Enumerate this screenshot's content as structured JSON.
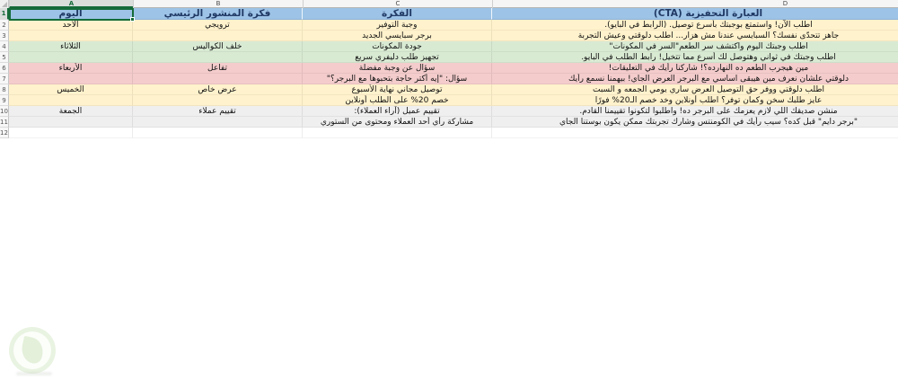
{
  "colors": {
    "header_fill": "#9dc3e6",
    "header_text": "#1f3864",
    "band_yellow": "#fff2cc",
    "band_green": "#d9ead3",
    "band_pink": "#f4cccc",
    "band_gray": "#efefef",
    "selection_green": "#156b39"
  },
  "sheet": {
    "column_letters": [
      "A",
      "B",
      "C",
      "D"
    ],
    "row_numbers": [
      "1",
      "2",
      "3",
      "4",
      "5",
      "6",
      "7",
      "8",
      "9",
      "10",
      "11",
      "12"
    ],
    "headers": {
      "a": "اليوم",
      "b": "فكرة المنشور الرئيسي",
      "c": "الفكرة",
      "d": "العبارة التحفيزية (CTA)"
    },
    "rows": [
      {
        "n": "2",
        "a": "الأحد",
        "b": "ترويجي",
        "c": "وجبة التوفير",
        "d": "اطلب الآن! واستمتع بوجبتك بأسرع توصيل. (الرابط في البايو)."
      },
      {
        "n": "3",
        "a": "",
        "b": "",
        "c": "برجر سبايسي الجديد",
        "d": "جاهز تتحدّى نفسك؟ السبايسي عندنا مش هزار... اطلب دلوقتي وعيش التجربة"
      },
      {
        "n": "4",
        "a": "الثلاثاء",
        "b": "خلف الكواليس",
        "c": "جودة المكونات",
        "d": "اطلب وجبتك اليوم واكتشف سر الطعم\"السر في المكونات\""
      },
      {
        "n": "5",
        "a": "",
        "b": "",
        "c": "تجهيز طلب دليفري سريع",
        "d": "اطلب وجبتك في ثواني وهتوصل لك أسرع مما تتخيل! رابط الطلب في البايو."
      },
      {
        "n": "6",
        "a": "الأربعاء",
        "b": "تفاعل",
        "c": "سؤال عن وجبة مفضلة",
        "d": "مين هيجرب الطعم ده النهارده؟! شاركنا رأيك في التعليقات!"
      },
      {
        "n": "7",
        "a": "",
        "b": "",
        "c": "سؤال: \"إيه أكتر حاجة بتحبوها مع البرجر؟\"",
        "d": "دلوقتي علشان نعرف مين هيبقى اساسي مع البرجر العرض الجاي! بيهمنا نسمع رأيك"
      },
      {
        "n": "8",
        "a": "الخميس",
        "b": "عرض خاص",
        "c": "توصيل مجاني نهاية الأسبوع",
        "d": "اطلب دلوقتي ووفر حق التوصيل العرض ساري يومي الجمعه و السبت"
      },
      {
        "n": "9",
        "a": "",
        "b": "",
        "c": "خصم 20% على الطلب أونلاين",
        "d": "عايز طلبك سخن وكمان توفر؟ اطلب أونلاين وخد خصم الـ20% فورًا"
      },
      {
        "n": "10",
        "a": "الجمعة",
        "b": "تقييم عملاء",
        "c": "تقييم عميل (آراء العملاء):",
        "d": "منشن صديقك اللي لازم يعزمك على البرجر ده! واطلبوا لتكونوا تقييمنا القادم."
      },
      {
        "n": "11",
        "a": "",
        "b": "",
        "c": "مشاركة رأي أحد العملاء ومحتوى من الستوري",
        "d": "\"برجر دايم\" قبل كده؟ سيب رأيك في الكومنتس وشارك تجربتك ممكن يكون بوستنا الجاي"
      },
      {
        "n": "12",
        "a": "",
        "b": "",
        "c": "",
        "d": ""
      }
    ]
  }
}
